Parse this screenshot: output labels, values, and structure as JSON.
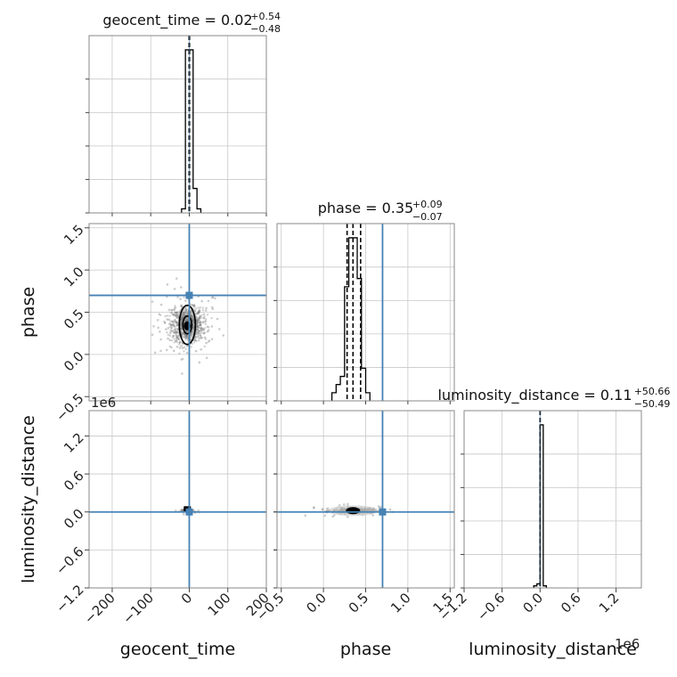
{
  "chart_data": {
    "type": "corner",
    "grid": true,
    "truth_color": "#4682b4",
    "parameters": [
      {
        "key": "geocent_time",
        "label": "geocent_time",
        "title": "geocent_time = 0.02",
        "title_plus": "+0.54",
        "title_minus": "−0.48",
        "range": [
          -260,
          200
        ],
        "ticks": [
          -200,
          -100,
          0,
          100,
          200
        ],
        "tick_labels": [
          "−200",
          "−100",
          "0",
          "100",
          "200"
        ],
        "truth": 0,
        "quantiles": [
          -0.46,
          0.02,
          0.56
        ],
        "offset_label": ""
      },
      {
        "key": "phase",
        "label": "phase",
        "title": "phase = 0.35",
        "title_plus": "+0.09",
        "title_minus": "−0.07",
        "range": [
          -0.55,
          1.55
        ],
        "ticks": [
          -0.5,
          0.0,
          0.5,
          1.0,
          1.5
        ],
        "tick_labels": [
          "−0.5",
          "0.0",
          "0.5",
          "1.0",
          "1.5"
        ],
        "truth": 0.7,
        "quantiles": [
          0.28,
          0.35,
          0.44
        ],
        "offset_label": ""
      },
      {
        "key": "luminosity_distance",
        "label": "luminosity_distance",
        "title": "luminosity_distance = 0.11",
        "title_plus": "+50.66",
        "title_minus": "−50.49",
        "range": [
          -1.2,
          1.6
        ],
        "ticks": [
          -1.2,
          -0.6,
          0.0,
          0.6,
          1.2
        ],
        "tick_labels": [
          "−1.2",
          "−0.6",
          "0.0",
          "0.6",
          "1.2"
        ],
        "truth": 0.0,
        "quantiles": [
          -0.0001,
          0.0,
          0.0001
        ],
        "offset_label": "1e6"
      }
    ],
    "histograms": {
      "geocent_time": {
        "bin_edges": [
          -20,
          -10,
          0,
          10,
          20,
          30
        ],
        "counts": [
          1,
          40,
          40,
          6,
          1
        ]
      },
      "phase": {
        "bin_edges": [
          0.1,
          0.15,
          0.2,
          0.25,
          0.3,
          0.35,
          0.4,
          0.45,
          0.5,
          0.55
        ],
        "counts": [
          1,
          2,
          3,
          14,
          20,
          20,
          15,
          4,
          1
        ]
      },
      "luminosity_distance": {
        "bin_edges": [
          -0.1,
          -0.05,
          0.0,
          0.05,
          0.1
        ],
        "counts": [
          0.5,
          1,
          40,
          0.5
        ]
      }
    },
    "pairs": [
      {
        "x": "geocent_time",
        "y": "phase",
        "center": [
          -5,
          0.35
        ],
        "spread": [
          20,
          0.1
        ],
        "core_points": 900,
        "scatter_points": 120
      },
      {
        "x": "geocent_time",
        "y": "luminosity_distance",
        "center": [
          -5,
          0.02
        ],
        "spread": [
          8,
          0.01
        ],
        "core_points": 60,
        "scatter_points": 10
      },
      {
        "x": "phase",
        "y": "luminosity_distance",
        "center": [
          0.35,
          0.02
        ],
        "spread": [
          0.12,
          0.02
        ],
        "core_points": 500,
        "scatter_points": 40
      }
    ]
  }
}
